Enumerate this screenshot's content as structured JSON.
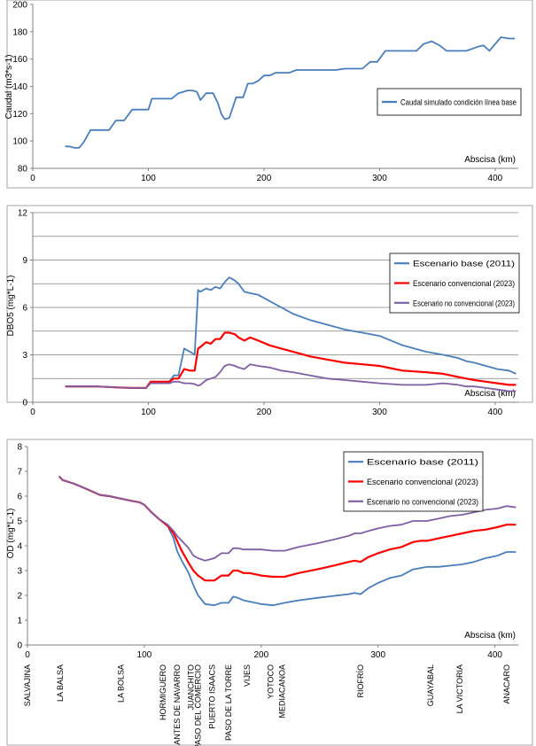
{
  "colors": {
    "blue": "#4a7ebb",
    "red": "#ff0000",
    "purple": "#7f5fa3",
    "axis": "#808080",
    "grid": "#808080",
    "text": "#000000"
  },
  "chart_data": [
    {
      "type": "line",
      "ylabel": "Caudal (m3*s-1)",
      "xlabel": "Abscisa (km)",
      "xlim": [
        0,
        420
      ],
      "ylim": [
        80,
        200
      ],
      "xticks": [
        0,
        100,
        200,
        300,
        400
      ],
      "yticks": [
        80,
        100,
        120,
        140,
        160,
        180,
        200
      ],
      "grid": false,
      "legend_position": "right",
      "series": [
        {
          "name": "Caudal simulado condición línea base",
          "color": "#4a7ebb",
          "x": [
            28,
            32,
            36,
            40,
            44,
            50,
            58,
            66,
            72,
            79,
            86,
            93,
            100,
            103,
            112,
            120,
            126,
            130,
            134,
            138,
            142,
            145,
            150,
            156,
            160,
            163,
            166,
            170,
            176,
            180,
            182,
            186,
            190,
            195,
            200,
            205,
            210,
            215,
            222,
            228,
            240,
            250,
            262,
            270,
            285,
            292,
            298,
            305,
            320,
            332,
            338,
            345,
            352,
            358,
            366,
            375,
            385,
            390,
            395,
            405,
            412,
            417
          ],
          "y": [
            96,
            96,
            95,
            95,
            99,
            108,
            108,
            108,
            115,
            115,
            123,
            123,
            123,
            131,
            131,
            131,
            135,
            136,
            137,
            137,
            136,
            130,
            135,
            135,
            128,
            120,
            116,
            117,
            132,
            132,
            132,
            142,
            142,
            144,
            148,
            148,
            150,
            150,
            150,
            152,
            152,
            152,
            152,
            153,
            153,
            158,
            158,
            166,
            166,
            166,
            171,
            173,
            170,
            166,
            166,
            166,
            169,
            170,
            166,
            176,
            175,
            175
          ]
        }
      ]
    },
    {
      "type": "line",
      "ylabel": "DBO5 (mg*L-1)",
      "xlabel": "Abscisa (km)",
      "xlim": [
        0,
        420
      ],
      "ylim": [
        0,
        12
      ],
      "xticks": [
        0,
        100,
        200,
        300,
        400
      ],
      "yticks": [
        0,
        3,
        6,
        9,
        12
      ],
      "grid": true,
      "legend_position": "right",
      "series": [
        {
          "name": "Escenario base (2011)",
          "color": "#4a7ebb",
          "x": [
            28,
            40,
            55,
            70,
            85,
            98,
            102,
            110,
            118,
            122,
            126,
            131,
            136,
            140,
            143,
            145,
            150,
            154,
            158,
            162,
            166,
            170,
            175,
            178,
            183,
            188,
            195,
            205,
            215,
            225,
            240,
            255,
            270,
            285,
            300,
            320,
            340,
            355,
            368,
            375,
            382,
            392,
            402,
            412,
            418
          ],
          "y": [
            1.0,
            1.0,
            1.0,
            0.95,
            0.9,
            0.9,
            1.3,
            1.3,
            1.3,
            1.7,
            1.7,
            3.4,
            3.2,
            3.0,
            7.1,
            7.0,
            7.2,
            7.1,
            7.3,
            7.2,
            7.6,
            7.9,
            7.7,
            7.5,
            7.0,
            6.9,
            6.8,
            6.4,
            6.0,
            5.6,
            5.2,
            4.9,
            4.6,
            4.4,
            4.2,
            3.6,
            3.2,
            3.0,
            2.8,
            2.6,
            2.5,
            2.3,
            2.1,
            2.0,
            1.8
          ]
        },
        {
          "name": "Escenario convencional (2023)",
          "color": "#ff0000",
          "x": [
            28,
            40,
            55,
            70,
            85,
            98,
            102,
            110,
            118,
            122,
            126,
            131,
            136,
            140,
            143,
            145,
            150,
            154,
            158,
            162,
            166,
            170,
            175,
            178,
            183,
            188,
            195,
            205,
            215,
            225,
            240,
            255,
            270,
            285,
            300,
            320,
            340,
            355,
            368,
            375,
            382,
            392,
            402,
            412,
            418
          ],
          "y": [
            1.0,
            1.0,
            1.0,
            0.95,
            0.9,
            0.9,
            1.3,
            1.3,
            1.3,
            1.5,
            1.5,
            2.1,
            2.0,
            2.0,
            3.4,
            3.5,
            3.8,
            3.7,
            4.0,
            4.0,
            4.4,
            4.4,
            4.3,
            4.1,
            3.9,
            4.1,
            3.9,
            3.6,
            3.4,
            3.2,
            2.9,
            2.7,
            2.5,
            2.4,
            2.3,
            2.0,
            1.9,
            1.8,
            1.6,
            1.5,
            1.4,
            1.3,
            1.2,
            1.1,
            1.1
          ]
        },
        {
          "name": "Escenario no convencional (2023)",
          "color": "#7f5fa3",
          "x": [
            28,
            40,
            55,
            70,
            85,
            98,
            102,
            110,
            118,
            122,
            126,
            131,
            136,
            140,
            143,
            145,
            150,
            154,
            158,
            162,
            166,
            170,
            175,
            178,
            183,
            188,
            195,
            205,
            215,
            225,
            240,
            255,
            270,
            285,
            300,
            320,
            340,
            355,
            368,
            375,
            382,
            392,
            402,
            412,
            418
          ],
          "y": [
            1.0,
            1.0,
            1.0,
            0.95,
            0.9,
            0.9,
            1.2,
            1.2,
            1.2,
            1.3,
            1.3,
            1.2,
            1.2,
            1.15,
            1.05,
            1.1,
            1.4,
            1.5,
            1.6,
            1.9,
            2.3,
            2.4,
            2.3,
            2.2,
            2.1,
            2.4,
            2.3,
            2.2,
            2.0,
            1.9,
            1.7,
            1.5,
            1.4,
            1.3,
            1.2,
            1.1,
            1.1,
            1.2,
            1.1,
            1.0,
            1.0,
            0.9,
            0.8,
            0.7,
            0.7
          ]
        }
      ]
    },
    {
      "type": "line",
      "ylabel": "OD (mg*L-1)",
      "xlabel": "Abscisa (km)",
      "xlim": [
        0,
        420
      ],
      "ylim": [
        0,
        8
      ],
      "xticks": [
        0,
        100,
        200,
        300,
        400
      ],
      "yticks": [
        0,
        1,
        2,
        3,
        4,
        5,
        6,
        7,
        8
      ],
      "grid": false,
      "legend_position": "top-right",
      "stations": [
        {
          "name": "SALVAJINA",
          "x": 0
        },
        {
          "name": "LA BALSA",
          "x": 28
        },
        {
          "name": "LA BOLSA",
          "x": 80
        },
        {
          "name": "HORMIGUERO",
          "x": 116
        },
        {
          "name": "ANTES DE NAVARRO",
          "x": 128
        },
        {
          "name": "JUANCHITO",
          "x": 140
        },
        {
          "name": "PASO DEL COMERCIO",
          "x": 146
        },
        {
          "name": "PUERTO ISAACS",
          "x": 158
        },
        {
          "name": "PASO DE LA TORRE",
          "x": 172
        },
        {
          "name": "VIJES",
          "x": 188
        },
        {
          "name": "YOTOCO",
          "x": 208
        },
        {
          "name": "MEDIACANOA",
          "x": 218
        },
        {
          "name": "RIOFRÍO",
          "x": 285
        },
        {
          "name": "GUAYABAL",
          "x": 345
        },
        {
          "name": "LA VICTORIA",
          "x": 370
        },
        {
          "name": "ANACARO",
          "x": 410
        }
      ],
      "series": [
        {
          "name": "Escenario base (2011)",
          "color": "#4a7ebb",
          "x": [
            27,
            30,
            40,
            50,
            62,
            70,
            80,
            90,
            96,
            100,
            105,
            112,
            120,
            125,
            128,
            132,
            138,
            142,
            146,
            152,
            160,
            166,
            172,
            176,
            180,
            185,
            190,
            200,
            210,
            220,
            232,
            248,
            262,
            275,
            280,
            285,
            292,
            300,
            310,
            320,
            330,
            336,
            342,
            352,
            362,
            372,
            382,
            392,
            402,
            410,
            418
          ],
          "y": [
            6.8,
            6.65,
            6.5,
            6.3,
            6.05,
            6.0,
            5.9,
            5.8,
            5.75,
            5.65,
            5.4,
            5.1,
            4.8,
            4.3,
            3.8,
            3.4,
            2.9,
            2.4,
            2.0,
            1.65,
            1.6,
            1.7,
            1.7,
            1.95,
            1.9,
            1.8,
            1.75,
            1.65,
            1.6,
            1.7,
            1.8,
            1.9,
            1.98,
            2.05,
            2.1,
            2.05,
            2.3,
            2.5,
            2.7,
            2.8,
            3.05,
            3.1,
            3.15,
            3.15,
            3.2,
            3.25,
            3.35,
            3.5,
            3.6,
            3.75,
            3.75
          ]
        },
        {
          "name": "Escenario convencional (2023)",
          "color": "#ff0000",
          "x": [
            27,
            30,
            40,
            50,
            62,
            70,
            80,
            90,
            96,
            100,
            105,
            112,
            120,
            125,
            128,
            132,
            138,
            142,
            146,
            152,
            160,
            166,
            172,
            176,
            180,
            185,
            190,
            200,
            210,
            220,
            232,
            248,
            262,
            275,
            280,
            285,
            292,
            300,
            310,
            320,
            330,
            336,
            342,
            352,
            362,
            372,
            382,
            392,
            402,
            410,
            418
          ],
          "y": [
            6.8,
            6.65,
            6.5,
            6.3,
            6.05,
            6.0,
            5.9,
            5.8,
            5.75,
            5.65,
            5.4,
            5.1,
            4.8,
            4.5,
            4.2,
            3.8,
            3.3,
            3.0,
            2.8,
            2.6,
            2.6,
            2.8,
            2.8,
            3.0,
            3.0,
            2.9,
            2.9,
            2.8,
            2.75,
            2.75,
            2.9,
            3.05,
            3.2,
            3.35,
            3.4,
            3.35,
            3.55,
            3.7,
            3.85,
            3.95,
            4.15,
            4.2,
            4.2,
            4.3,
            4.4,
            4.5,
            4.6,
            4.65,
            4.75,
            4.85,
            4.85
          ]
        },
        {
          "name": "Escenario no convencional (2023)",
          "color": "#7f5fa3",
          "x": [
            27,
            30,
            40,
            50,
            62,
            70,
            80,
            90,
            96,
            100,
            105,
            112,
            120,
            125,
            128,
            132,
            138,
            142,
            146,
            152,
            160,
            166,
            172,
            176,
            180,
            185,
            190,
            200,
            210,
            220,
            232,
            248,
            262,
            275,
            280,
            285,
            292,
            300,
            310,
            320,
            330,
            336,
            342,
            352,
            362,
            372,
            382,
            392,
            402,
            410,
            418
          ],
          "y": [
            6.8,
            6.65,
            6.5,
            6.3,
            6.05,
            6.0,
            5.9,
            5.8,
            5.75,
            5.65,
            5.4,
            5.1,
            4.85,
            4.6,
            4.4,
            4.2,
            3.9,
            3.6,
            3.5,
            3.4,
            3.5,
            3.7,
            3.7,
            3.9,
            3.9,
            3.85,
            3.85,
            3.85,
            3.8,
            3.8,
            3.95,
            4.1,
            4.25,
            4.4,
            4.5,
            4.5,
            4.6,
            4.7,
            4.8,
            4.85,
            5.0,
            5.0,
            5.0,
            5.1,
            5.2,
            5.25,
            5.35,
            5.45,
            5.5,
            5.6,
            5.55
          ]
        }
      ]
    }
  ]
}
